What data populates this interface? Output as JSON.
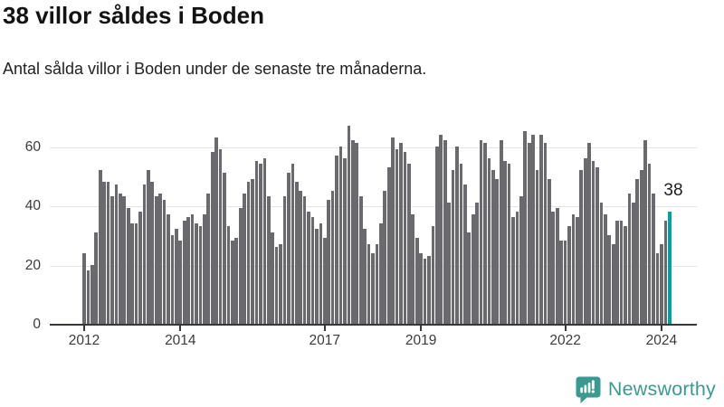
{
  "header": {
    "title": "38 villor såldes i Boden",
    "subtitle": "Antal sålda villor i Boden under de senaste tre månaderna."
  },
  "chart_data": {
    "type": "bar",
    "title": "38 villor såldes i Boden",
    "subtitle": "Antal sålda villor i Boden under de senaste tre månaderna.",
    "x_start": "2012-01",
    "x_interval": "month",
    "values": [
      24,
      18,
      20,
      31,
      52,
      48,
      48,
      43,
      47,
      44,
      43,
      39,
      34,
      34,
      38,
      47,
      52,
      48,
      43,
      44,
      42,
      37,
      30,
      32,
      28,
      35,
      36,
      37,
      34,
      33,
      37,
      44,
      58,
      63,
      59,
      51,
      33,
      28,
      29,
      39,
      44,
      48,
      49,
      55,
      54,
      56,
      43,
      31,
      26,
      27,
      43,
      51,
      54,
      48,
      45,
      43,
      38,
      36,
      32,
      34,
      29,
      42,
      45,
      57,
      60,
      56,
      67,
      62,
      61,
      43,
      32,
      27,
      24,
      27,
      34,
      45,
      53,
      63,
      59,
      61,
      58,
      54,
      37,
      29,
      24,
      22,
      23,
      33,
      60,
      64,
      62,
      41,
      52,
      60,
      54,
      47,
      31,
      37,
      41,
      62,
      61,
      56,
      52,
      49,
      62,
      55,
      54,
      36,
      38,
      43,
      65,
      61,
      64,
      52,
      64,
      61,
      49,
      38,
      39,
      28,
      28,
      33,
      37,
      36,
      52,
      56,
      61,
      55,
      53,
      41,
      37,
      30,
      27,
      35,
      35,
      33,
      44,
      41,
      49,
      52,
      62,
      54,
      44,
      24,
      27,
      35,
      38
    ],
    "x_ticks": [
      {
        "label": "2012",
        "month_index": 0
      },
      {
        "label": "2014",
        "month_index": 24
      },
      {
        "label": "2017",
        "month_index": 60
      },
      {
        "label": "2019",
        "month_index": 84
      },
      {
        "label": "2022",
        "month_index": 120
      },
      {
        "label": "2024",
        "month_index": 144
      }
    ],
    "y_ticks": [
      0,
      20,
      40,
      60
    ],
    "ylim": [
      0,
      70
    ],
    "grid": "horizontal",
    "legend": "none",
    "highlight": {
      "month_index": 146,
      "value": 38,
      "label": "38"
    }
  },
  "annotation": {
    "label": "38"
  },
  "logo": {
    "text": "Newsworthy"
  },
  "colors": {
    "bar": "#69696e",
    "highlight": "#00a2a0",
    "grid": "#e4e4e4",
    "axis": "#37373b",
    "tick_label": "#3b3b3b",
    "title": "#131313",
    "subtitle": "#222222",
    "logo": "#3a9a91",
    "background": "#ffffff"
  }
}
